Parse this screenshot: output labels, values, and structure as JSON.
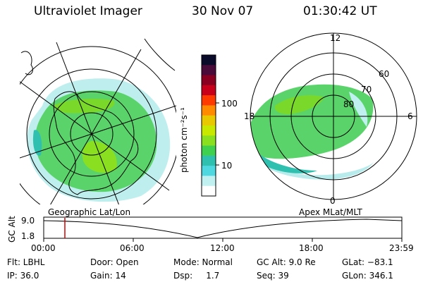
{
  "header": {
    "title": "Ultraviolet Imager",
    "date": "30 Nov 07",
    "time": "01:30:42 UT"
  },
  "colorbar": {
    "unit_label": "photon cm⁻²s⁻¹",
    "ticks": [
      "100",
      "10"
    ],
    "colors": [
      "#0a0a2a",
      "#4a0a3a",
      "#8a0020",
      "#c8001a",
      "#ff3a00",
      "#ff8a00",
      "#e8c800",
      "#c8e800",
      "#8ae020",
      "#40d050",
      "#30c0b0",
      "#50d8e0",
      "#c0f0f0",
      "#ffffff"
    ]
  },
  "left_map": {
    "label": "Geographic Lat/Lon"
  },
  "right_map": {
    "label": "Apex MLat/MLT",
    "lat_labels": [
      "60",
      "70",
      "80"
    ],
    "mlt_labels": [
      "12",
      "18",
      "6",
      "0"
    ]
  },
  "altitude_plot": {
    "ylabel": "GC Alt",
    "yticks": [
      "9.0",
      "1.8"
    ],
    "xticks": [
      "00:00",
      "06:00",
      "12:00",
      "18:00",
      "23:59"
    ],
    "marker_time": "01:30"
  },
  "info": {
    "flt": "Flt: LBHL",
    "ip": "IP: 36.0",
    "door": "Door: Open",
    "gain": "Gain: 14",
    "mode": "Mode: Normal",
    "dsp": "Dsp:     1.7",
    "gcalt": "GC Alt: 9.0 Re",
    "seq": "Seq: 39",
    "glat": "GLat: −83.1",
    "glon": "GLon: 346.1"
  }
}
